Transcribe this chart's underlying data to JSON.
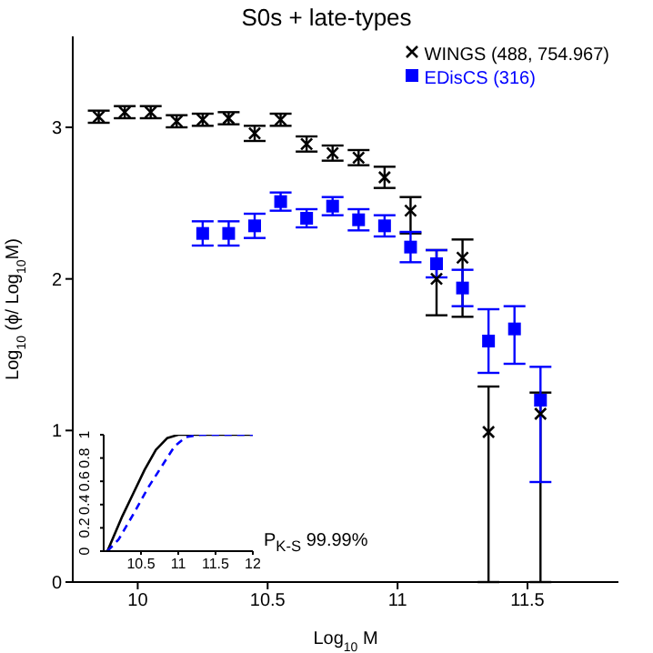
{
  "chart_data": [
    {
      "type": "scatter",
      "title": "S0s + late-types",
      "xlabel": "Log$_{10}$ M",
      "ylabel": "Log$_{10}$ (ϕ/ Log$_{10}$M)",
      "x": [
        9.85,
        9.95,
        10.05,
        10.15,
        10.25,
        10.35,
        10.45,
        10.55,
        10.65,
        10.75,
        10.85,
        10.95,
        11.05,
        11.15,
        11.25,
        11.35,
        11.45,
        11.55
      ],
      "xlim": [
        9.75,
        11.85
      ],
      "xticks": [
        10,
        10.5,
        11,
        11.5
      ],
      "ylim": [
        0,
        3.6
      ],
      "yticks": [
        0,
        1,
        2,
        3
      ],
      "legend": "top right",
      "grid": false,
      "series": [
        {
          "name": "WINGS (488, 754.967)",
          "color": "#000000",
          "marker": "cross",
          "values": [
            3.07,
            3.1,
            3.1,
            3.04,
            3.05,
            3.06,
            2.96,
            3.05,
            2.89,
            2.83,
            2.8,
            2.67,
            2.45,
            2.0,
            2.14,
            0.99,
            null,
            1.11
          ],
          "errors": [
            0.04,
            0.04,
            0.04,
            0.04,
            0.04,
            0.04,
            0.05,
            0.04,
            0.05,
            0.05,
            0.05,
            0.07,
            [
              2.3,
              2.54
            ],
            [
              1.76,
              2.19
            ],
            [
              1.75,
              2.26
            ],
            [
              0,
              1.29
            ],
            null,
            [
              0,
              1.25
            ]
          ]
        },
        {
          "name": "EDisCS (316)",
          "color": "#0000ff",
          "marker": "square",
          "values": [
            null,
            null,
            null,
            null,
            2.3,
            2.3,
            2.35,
            2.51,
            2.4,
            2.48,
            2.39,
            2.35,
            2.21,
            2.1,
            1.94,
            1.59,
            1.67,
            1.2
          ],
          "errors": [
            null,
            null,
            null,
            null,
            0.08,
            0.08,
            0.08,
            0.06,
            0.06,
            0.06,
            0.07,
            0.07,
            0.1,
            0.09,
            0.12,
            0.21,
            [
              1.44,
              1.82
            ],
            [
              0.66,
              1.42
            ]
          ]
        }
      ]
    },
    {
      "type": "line",
      "xlim": [
        10,
        12
      ],
      "xticks": [
        10.5,
        11,
        11.5,
        12
      ],
      "ylim": [
        0,
        1
      ],
      "yticks": [
        0,
        0.2,
        0.4,
        0.6,
        0.8,
        1
      ],
      "grid": false,
      "marker": "none",
      "annotations": [
        "P$_{K-S}$ 99.99%"
      ],
      "series": [
        {
          "color": "#000000",
          "line_style": "solid",
          "x": [
            10.05,
            10.15,
            10.25,
            10.4,
            10.55,
            10.7,
            10.85,
            11.0,
            12
          ],
          "values": [
            0,
            0.15,
            0.3,
            0.5,
            0.7,
            0.87,
            0.97,
            1,
            1
          ]
        },
        {
          "color": "#0000ff",
          "line_style": "dashed",
          "x": [
            10.05,
            10.2,
            10.4,
            10.6,
            10.8,
            10.95,
            11.1,
            11.3,
            12
          ],
          "values": [
            0,
            0.1,
            0.32,
            0.55,
            0.75,
            0.9,
            0.98,
            1,
            1
          ]
        }
      ]
    }
  ]
}
